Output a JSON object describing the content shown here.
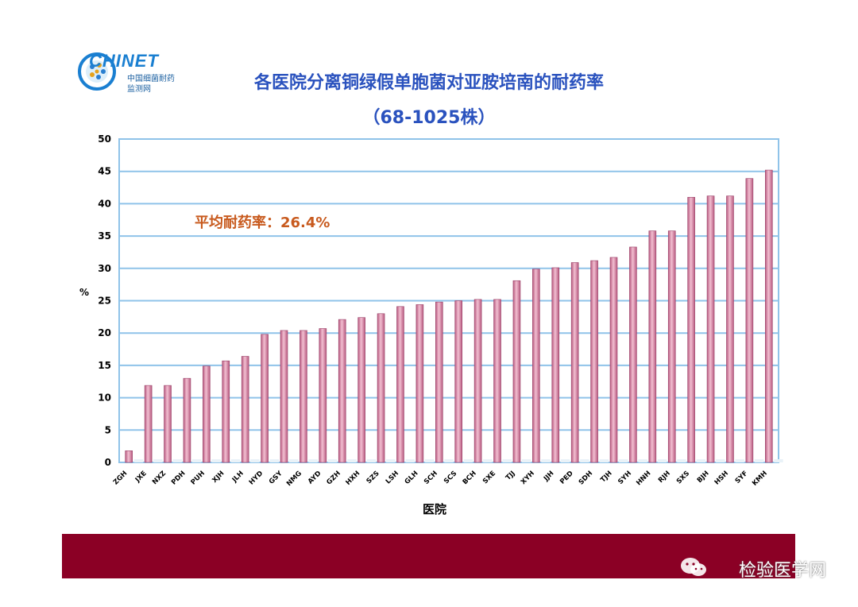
{
  "logo": {
    "brand": "CHINET",
    "line1": "中国细菌耐药",
    "line2": "监测网"
  },
  "title": "各医院分离铜绿假单胞菌对亚胺培南的耐药率",
  "subtitle": "（68-1025株）",
  "watermark": "检验医学网",
  "chart_data": {
    "type": "bar",
    "ylabel": "%",
    "xlabel": "医院",
    "ylim": [
      0,
      50
    ],
    "yticks": [
      0,
      5,
      10,
      15,
      20,
      25,
      30,
      35,
      40,
      45,
      50
    ],
    "annotation": "平均耐药率：26.4%",
    "categories": [
      "ZGH",
      "JXE",
      "NXZ",
      "PDH",
      "PUH",
      "XJH",
      "JLH",
      "HYD",
      "GSY",
      "NMG",
      "AYD",
      "GZH",
      "HXH",
      "SZS",
      "LSH",
      "GLH",
      "SCH",
      "SCS",
      "BCH",
      "SXE",
      "TJJ",
      "XYH",
      "JJH",
      "PED",
      "SDH",
      "TJH",
      "SYH",
      "HNH",
      "RJH",
      "SXS",
      "BJH",
      "HSH",
      "SYF",
      "KMH"
    ],
    "values": [
      1.8,
      11.9,
      11.9,
      13.0,
      14.9,
      15.7,
      16.4,
      19.8,
      20.4,
      20.4,
      20.7,
      22.1,
      22.4,
      23.0,
      24.1,
      24.4,
      24.8,
      25.0,
      25.2,
      25.2,
      28.1,
      29.9,
      30.1,
      30.9,
      31.2,
      31.7,
      33.3,
      35.8,
      35.8,
      41.0,
      41.2,
      41.2,
      43.9,
      45.2
    ],
    "colors": {
      "bar_main": "#c96a8f",
      "bar_light": "#f2bfd1",
      "grid": "#8fc3e9",
      "tick": "#000000",
      "annotation": "#c85a1e"
    }
  }
}
